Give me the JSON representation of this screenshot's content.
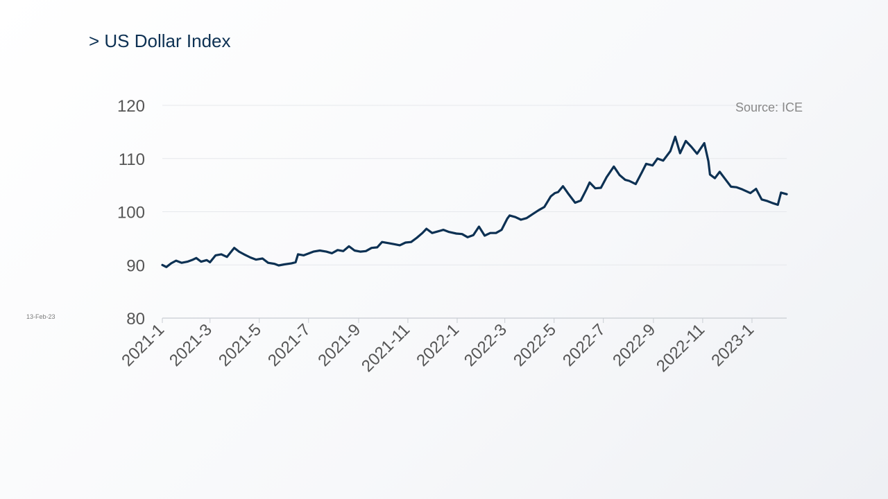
{
  "slide": {
    "title": "> US Dollar Index",
    "date_stamp": "13-Feb-23"
  },
  "chart_data": {
    "type": "line",
    "title": "",
    "source": "Source: ICE",
    "xlabel": "",
    "ylabel": "",
    "ylim": [
      80,
      120
    ],
    "yticks": [
      80,
      90,
      100,
      110,
      120
    ],
    "xlim": [
      "2021-01-01",
      "2023-02-13"
    ],
    "xticks": [
      "2021-1",
      "2021-3",
      "2021-5",
      "2021-7",
      "2021-9",
      "2021-11",
      "2022-1",
      "2022-3",
      "2022-5",
      "2022-7",
      "2022-9",
      "2022-11",
      "2023-1"
    ],
    "grid": "horizontal",
    "line_color": "#0d3153",
    "series": [
      {
        "values": [
          [
            "2021-01-01",
            90.0
          ],
          [
            "2021-01-06",
            89.6
          ],
          [
            "2021-01-12",
            90.3
          ],
          [
            "2021-01-18",
            90.8
          ],
          [
            "2021-01-25",
            90.4
          ],
          [
            "2021-02-01",
            90.6
          ],
          [
            "2021-02-08",
            91.0
          ],
          [
            "2021-02-12",
            91.3
          ],
          [
            "2021-02-18",
            90.6
          ],
          [
            "2021-02-25",
            90.9
          ],
          [
            "2021-03-01",
            90.5
          ],
          [
            "2021-03-08",
            91.8
          ],
          [
            "2021-03-15",
            92.0
          ],
          [
            "2021-03-22",
            91.5
          ],
          [
            "2021-03-31",
            93.2
          ],
          [
            "2021-04-06",
            92.5
          ],
          [
            "2021-04-12",
            92.0
          ],
          [
            "2021-04-20",
            91.4
          ],
          [
            "2021-04-27",
            91.0
          ],
          [
            "2021-05-05",
            91.2
          ],
          [
            "2021-05-12",
            90.4
          ],
          [
            "2021-05-20",
            90.2
          ],
          [
            "2021-05-25",
            89.9
          ],
          [
            "2021-06-01",
            90.1
          ],
          [
            "2021-06-10",
            90.3
          ],
          [
            "2021-06-15",
            90.5
          ],
          [
            "2021-06-18",
            92.0
          ],
          [
            "2021-06-25",
            91.8
          ],
          [
            "2021-07-07",
            92.5
          ],
          [
            "2021-07-15",
            92.7
          ],
          [
            "2021-07-23",
            92.5
          ],
          [
            "2021-07-30",
            92.2
          ],
          [
            "2021-08-06",
            92.8
          ],
          [
            "2021-08-13",
            92.6
          ],
          [
            "2021-08-20",
            93.5
          ],
          [
            "2021-08-27",
            92.7
          ],
          [
            "2021-09-03",
            92.5
          ],
          [
            "2021-09-10",
            92.6
          ],
          [
            "2021-09-17",
            93.2
          ],
          [
            "2021-09-24",
            93.3
          ],
          [
            "2021-09-30",
            94.3
          ],
          [
            "2021-10-08",
            94.1
          ],
          [
            "2021-10-15",
            93.9
          ],
          [
            "2021-10-22",
            93.7
          ],
          [
            "2021-10-29",
            94.2
          ],
          [
            "2021-11-05",
            94.3
          ],
          [
            "2021-11-12",
            95.1
          ],
          [
            "2021-11-19",
            96.0
          ],
          [
            "2021-11-24",
            96.8
          ],
          [
            "2021-12-01",
            96.0
          ],
          [
            "2021-12-08",
            96.3
          ],
          [
            "2021-12-15",
            96.6
          ],
          [
            "2021-12-22",
            96.2
          ],
          [
            "2021-12-31",
            95.9
          ],
          [
            "2022-01-07",
            95.8
          ],
          [
            "2022-01-14",
            95.2
          ],
          [
            "2022-01-21",
            95.6
          ],
          [
            "2022-01-28",
            97.2
          ],
          [
            "2022-02-04",
            95.5
          ],
          [
            "2022-02-11",
            96.0
          ],
          [
            "2022-02-18",
            96.0
          ],
          [
            "2022-02-25",
            96.6
          ],
          [
            "2022-03-04",
            98.7
          ],
          [
            "2022-03-07",
            99.3
          ],
          [
            "2022-03-14",
            99.0
          ],
          [
            "2022-03-21",
            98.5
          ],
          [
            "2022-03-28",
            98.8
          ],
          [
            "2022-04-04",
            99.5
          ],
          [
            "2022-04-12",
            100.3
          ],
          [
            "2022-04-19",
            100.9
          ],
          [
            "2022-04-27",
            102.9
          ],
          [
            "2022-05-02",
            103.5
          ],
          [
            "2022-05-06",
            103.7
          ],
          [
            "2022-05-12",
            104.8
          ],
          [
            "2022-05-18",
            103.5
          ],
          [
            "2022-05-27",
            101.7
          ],
          [
            "2022-06-03",
            102.1
          ],
          [
            "2022-06-10",
            104.2
          ],
          [
            "2022-06-14",
            105.5
          ],
          [
            "2022-06-21",
            104.4
          ],
          [
            "2022-06-28",
            104.5
          ],
          [
            "2022-07-05",
            106.5
          ],
          [
            "2022-07-14",
            108.5
          ],
          [
            "2022-07-21",
            106.9
          ],
          [
            "2022-07-28",
            106.0
          ],
          [
            "2022-08-02",
            105.8
          ],
          [
            "2022-08-10",
            105.2
          ],
          [
            "2022-08-18",
            107.5
          ],
          [
            "2022-08-23",
            109.0
          ],
          [
            "2022-08-31",
            108.7
          ],
          [
            "2022-09-06",
            110.0
          ],
          [
            "2022-09-13",
            109.6
          ],
          [
            "2022-09-22",
            111.4
          ],
          [
            "2022-09-28",
            114.1
          ],
          [
            "2022-10-04",
            111.0
          ],
          [
            "2022-10-11",
            113.3
          ],
          [
            "2022-10-18",
            112.2
          ],
          [
            "2022-10-25",
            110.9
          ],
          [
            "2022-11-03",
            112.9
          ],
          [
            "2022-11-08",
            109.5
          ],
          [
            "2022-11-10",
            107.0
          ],
          [
            "2022-11-16",
            106.3
          ],
          [
            "2022-11-22",
            107.5
          ],
          [
            "2022-11-30",
            105.9
          ],
          [
            "2022-12-06",
            104.7
          ],
          [
            "2022-12-13",
            104.6
          ],
          [
            "2022-12-20",
            104.2
          ],
          [
            "2022-12-30",
            103.5
          ],
          [
            "2023-01-06",
            104.3
          ],
          [
            "2023-01-13",
            102.3
          ],
          [
            "2023-01-20",
            102.0
          ],
          [
            "2023-01-27",
            101.6
          ],
          [
            "2023-02-02",
            101.3
          ],
          [
            "2023-02-06",
            103.6
          ],
          [
            "2023-02-13",
            103.3
          ]
        ]
      }
    ]
  }
}
